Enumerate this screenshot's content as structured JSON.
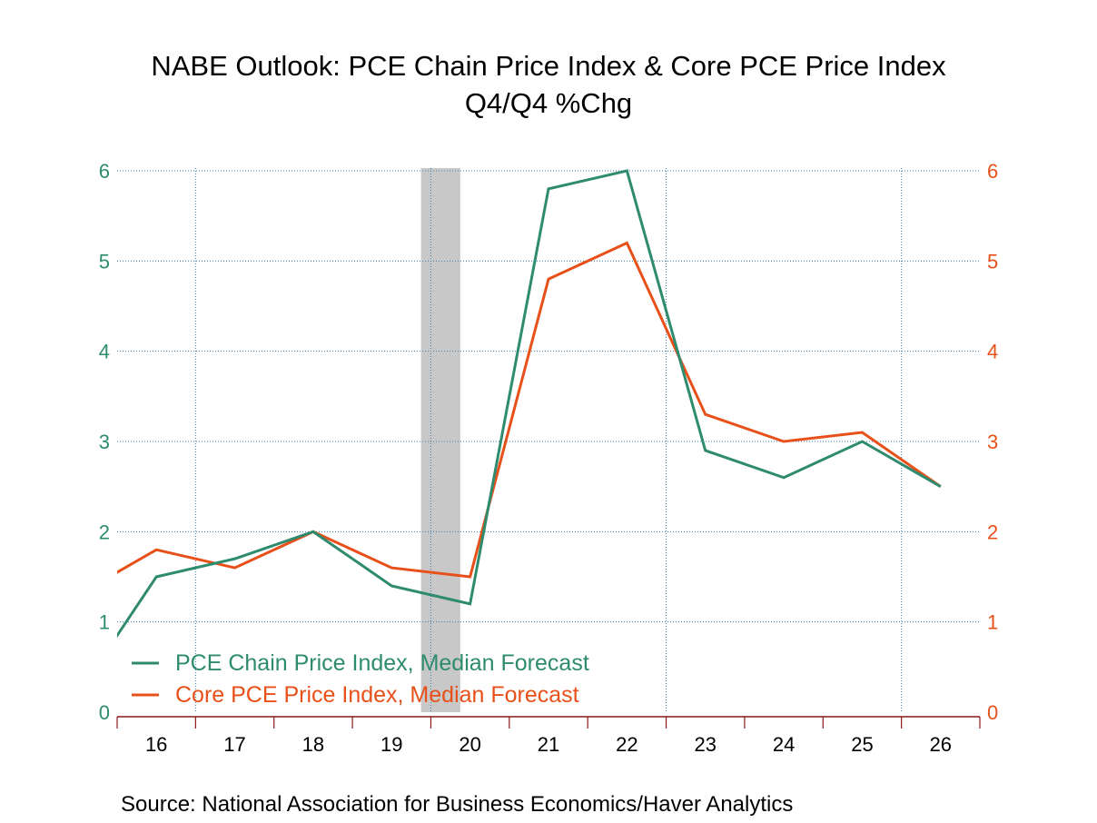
{
  "chart_data": {
    "type": "line",
    "title": "NABE Outlook: PCE Chain Price Index & Core PCE Price Index",
    "subtitle": "Q4/Q4 %Chg",
    "source": "Source:  National Association for Business Economics/Haver Analytics",
    "x": [
      2015,
      2016,
      2017,
      2018,
      2019,
      2020,
      2021,
      2022,
      2023,
      2024,
      2025,
      2026
    ],
    "xlim": [
      2016,
      2027
    ],
    "x_tick_labels": [
      "16",
      "17",
      "18",
      "19",
      "20",
      "21",
      "22",
      "23",
      "24",
      "25",
      "26"
    ],
    "ylim": [
      0,
      6
    ],
    "y_ticks_left": [
      "0",
      "1",
      "2",
      "3",
      "4",
      "5",
      "6"
    ],
    "y_ticks_right": [
      "0",
      "1",
      "2",
      "3",
      "4",
      "5",
      "6"
    ],
    "grid": true,
    "legend_placement": "bottom-left",
    "recession": [
      2019.875,
      2020.375
    ],
    "colors": {
      "left_axis": "#2e8b6e",
      "right_axis": "#e8501a",
      "axis": "#8b1a1a",
      "grid": "#3a7fb0",
      "recession": "#c8c8c8"
    },
    "series": [
      {
        "name": "PCE Chain Price Index, Median Forecast",
        "color": "#2e8b6e",
        "values": [
          0.2,
          1.5,
          1.7,
          2.0,
          1.4,
          1.2,
          5.8,
          6.0,
          2.9,
          2.6,
          3.0,
          2.5
        ]
      },
      {
        "name": "Core PCE Price Index, Median Forecast",
        "color": "#e8501a",
        "values": [
          1.3,
          1.8,
          1.6,
          2.0,
          1.6,
          1.5,
          4.8,
          5.2,
          3.3,
          3.0,
          3.1,
          2.5
        ]
      }
    ]
  }
}
